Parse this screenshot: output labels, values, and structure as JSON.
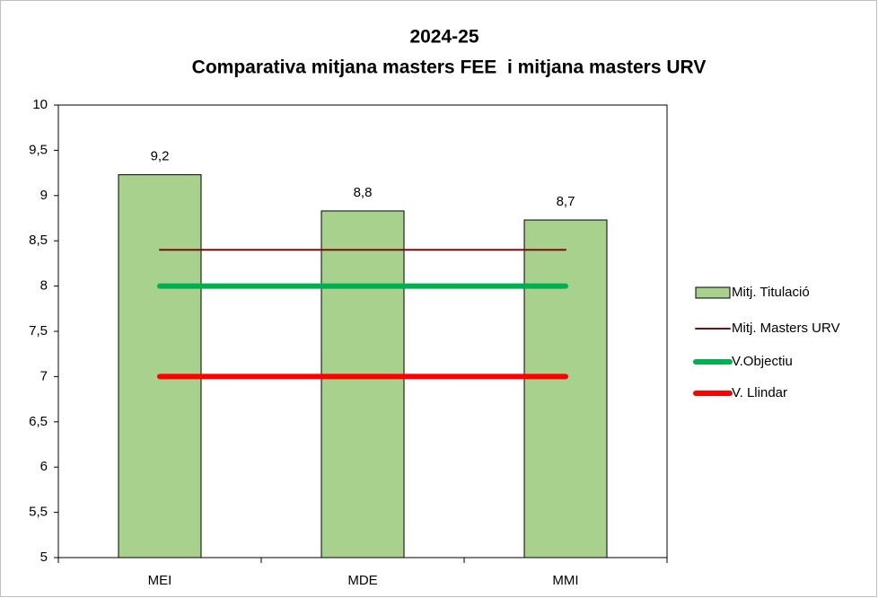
{
  "chart_data": {
    "type": "bar",
    "title": [
      "2024-25",
      "Comparativa mitjana masters FEE  i mitjana masters URV"
    ],
    "categories": [
      "MEI",
      "MDE",
      "MMI"
    ],
    "series": [
      {
        "name": "Mitj. Titulació",
        "type": "bar",
        "color": "#a9d18e",
        "values": [
          9.23,
          8.83,
          8.73
        ],
        "value_labels": [
          "9,2",
          "8,8",
          "8,7"
        ]
      },
      {
        "name": "Mitj. Masters URV",
        "type": "line",
        "color": "#7b0c0c",
        "values": [
          8.4,
          8.4,
          8.4
        ]
      },
      {
        "name": "V.Objectiu",
        "type": "line",
        "color": "#00b050",
        "values": [
          8,
          8,
          8
        ]
      },
      {
        "name": "V. Llindar",
        "type": "line",
        "color": "#ff0000",
        "values": [
          7,
          7,
          7
        ]
      }
    ],
    "ylim": [
      5,
      10
    ],
    "yticks": [
      5,
      {
        "value": 5.5,
        "label": "5,5"
      },
      6,
      {
        "value": 6.5,
        "label": "6,5"
      },
      7,
      {
        "value": 7.5,
        "label": "7,5"
      },
      8,
      {
        "value": 8.5,
        "label": "8,5"
      },
      9,
      {
        "value": 9.5,
        "label": "9,5"
      },
      10
    ],
    "legend": "right"
  }
}
